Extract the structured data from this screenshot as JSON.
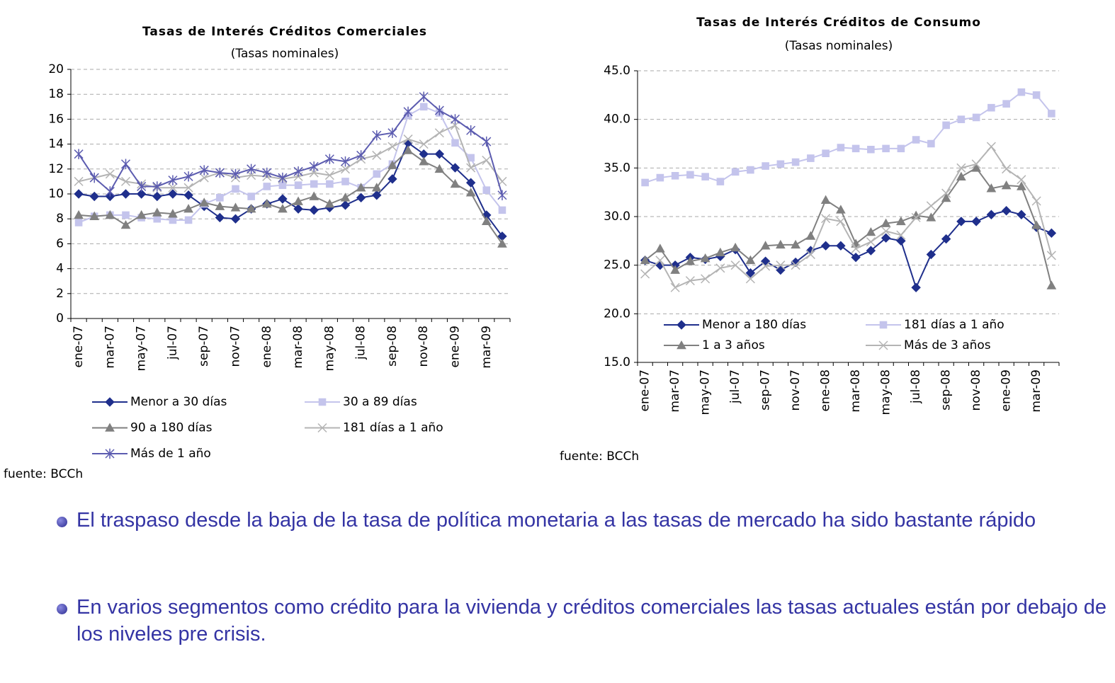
{
  "chart_data": [
    {
      "type": "line",
      "title": "Tasas de Interés Créditos Comerciales",
      "subtitle": "(Tasas nominales)",
      "source": "fuente: BCCh",
      "categories": [
        "ene-07",
        null,
        "mar-07",
        null,
        "may-07",
        null,
        "jul-07",
        null,
        "sep-07",
        null,
        "nov-07",
        null,
        "ene-08",
        null,
        "mar-08",
        null,
        "may-08",
        null,
        "jul-08",
        null,
        "sep-08",
        null,
        "nov-08",
        null,
        "ene-09",
        null,
        "mar-09",
        null
      ],
      "ylim": [
        0,
        20
      ],
      "yticks": [
        0,
        2,
        4,
        6,
        8,
        10,
        12,
        14,
        16,
        18,
        20
      ],
      "grid": true,
      "legend": "bottom",
      "series": [
        {
          "name": "Menor a 30 días",
          "color": "#1f2f8c",
          "marker": "diamond",
          "values": [
            10.0,
            9.8,
            9.8,
            10.0,
            10.0,
            9.8,
            10.0,
            9.9,
            9.0,
            8.1,
            8.0,
            8.8,
            9.2,
            9.6,
            8.8,
            8.7,
            8.9,
            9.1,
            9.7,
            9.9,
            11.2,
            14.1,
            13.2,
            13.2,
            12.1,
            10.9,
            8.3,
            6.6
          ]
        },
        {
          "name": "30 a 89 días",
          "color": "#c4c4ec",
          "marker": "square",
          "values": [
            7.7,
            8.2,
            8.3,
            8.3,
            8.1,
            8.0,
            7.9,
            7.9,
            9.2,
            9.7,
            10.4,
            9.8,
            10.6,
            10.7,
            10.7,
            10.8,
            10.8,
            11.0,
            10.5,
            11.6,
            12.4,
            16.3,
            17.0,
            16.5,
            14.1,
            12.9,
            10.3,
            8.7
          ]
        },
        {
          "name": "90 a 180 días",
          "color": "#808080",
          "marker": "triangle",
          "values": [
            8.3,
            8.2,
            8.3,
            7.5,
            8.3,
            8.5,
            8.4,
            8.8,
            9.3,
            9.0,
            8.9,
            8.8,
            9.2,
            8.8,
            9.4,
            9.8,
            9.2,
            9.7,
            10.5,
            10.5,
            12.3,
            13.5,
            12.6,
            12.0,
            10.8,
            10.1,
            7.8,
            6.0
          ]
        },
        {
          "name": "181 días a 1 año",
          "color": "#b4b4b4",
          "marker": "x",
          "values": [
            11.0,
            11.3,
            11.6,
            11.0,
            10.8,
            10.5,
            10.5,
            10.5,
            11.3,
            11.7,
            11.3,
            11.5,
            11.4,
            11.2,
            11.4,
            11.7,
            11.5,
            12.0,
            12.8,
            13.1,
            13.8,
            14.4,
            14.0,
            14.9,
            15.5,
            12.1,
            12.7,
            11.0
          ]
        },
        {
          "name": "Más de 1 año",
          "color": "#5c5cb0",
          "marker": "asterisk",
          "values": [
            13.2,
            11.3,
            10.2,
            12.4,
            10.6,
            10.6,
            11.1,
            11.4,
            11.9,
            11.7,
            11.6,
            12.0,
            11.7,
            11.3,
            11.8,
            12.2,
            12.8,
            12.6,
            13.1,
            14.7,
            14.9,
            16.6,
            17.8,
            16.7,
            16.0,
            15.1,
            14.2,
            9.9
          ]
        }
      ]
    },
    {
      "type": "line",
      "title": "Tasas de Interés Créditos de Consumo",
      "subtitle": "(Tasas nominales)",
      "source": "fuente: BCCh",
      "categories": [
        "ene-07",
        null,
        "mar-07",
        null,
        "may-07",
        null,
        "jul-07",
        null,
        "sep-07",
        null,
        "nov-07",
        null,
        "ene-08",
        null,
        "mar-08",
        null,
        "may-08",
        null,
        "jul-08",
        null,
        "sep-08",
        null,
        "nov-08",
        null,
        "ene-09",
        null,
        "mar-09",
        null
      ],
      "ylim": [
        15,
        45
      ],
      "yticks": [
        {
          "value": 15,
          "label": "15.0"
        },
        {
          "value": 20,
          "label": "20.0"
        },
        {
          "value": 25,
          "label": "25.0"
        },
        {
          "value": 30,
          "label": "30.0"
        },
        {
          "value": 35,
          "label": "35.0"
        },
        {
          "value": 40,
          "label": "40.0"
        },
        {
          "value": 45,
          "label": "45.0"
        }
      ],
      "grid": true,
      "legend": "lower",
      "series": [
        {
          "name": "Menor a 180 días",
          "color": "#1f2f8c",
          "marker": "diamond",
          "values": [
            25.5,
            25.0,
            25.0,
            25.8,
            25.6,
            25.9,
            26.6,
            24.2,
            25.4,
            24.5,
            25.3,
            26.5,
            27.0,
            27.0,
            25.8,
            26.5,
            27.8,
            27.5,
            22.7,
            26.1,
            27.7,
            29.5,
            29.5,
            30.2,
            30.6,
            30.2,
            28.9,
            28.3
          ]
        },
        {
          "name": "181 días a 1 año",
          "color": "#c4c4ec",
          "marker": "square",
          "values": [
            33.5,
            34.0,
            34.2,
            34.3,
            34.1,
            33.6,
            34.6,
            34.8,
            35.2,
            35.4,
            35.6,
            36.0,
            36.5,
            37.1,
            37.0,
            36.9,
            37.0,
            37.0,
            37.9,
            37.5,
            39.4,
            40.0,
            40.2,
            41.2,
            41.6,
            42.8,
            42.5,
            40.6
          ]
        },
        {
          "name": "1 a 3 años",
          "color": "#808080",
          "marker": "triangle",
          "values": [
            25.5,
            26.7,
            24.5,
            25.4,
            25.7,
            26.3,
            26.8,
            25.5,
            27.0,
            27.1,
            27.1,
            28.0,
            31.7,
            30.7,
            27.2,
            28.4,
            29.3,
            29.5,
            30.1,
            29.9,
            31.9,
            34.1,
            35.0,
            32.9,
            33.2,
            33.1,
            29.1,
            22.9
          ]
        },
        {
          "name": "Más de 3 años",
          "color": "#b4b4b4",
          "marker": "x",
          "values": [
            24.1,
            25.5,
            22.7,
            23.4,
            23.6,
            24.7,
            25.0,
            23.6,
            24.9,
            25.0,
            25.0,
            26.1,
            29.8,
            29.5,
            26.7,
            27.4,
            28.5,
            28.1,
            29.9,
            31.1,
            32.4,
            35.0,
            35.4,
            37.2,
            34.9,
            33.8,
            31.6,
            26.0
          ]
        }
      ]
    }
  ],
  "bullets": [
    "El traspaso desde la baja de la tasa de política monetaria a las tasas de mercado ha sido bastante rápido",
    "En varios segmentos como crédito para la vivienda y créditos comerciales las tasas actuales están por debajo de los niveles pre crisis."
  ]
}
